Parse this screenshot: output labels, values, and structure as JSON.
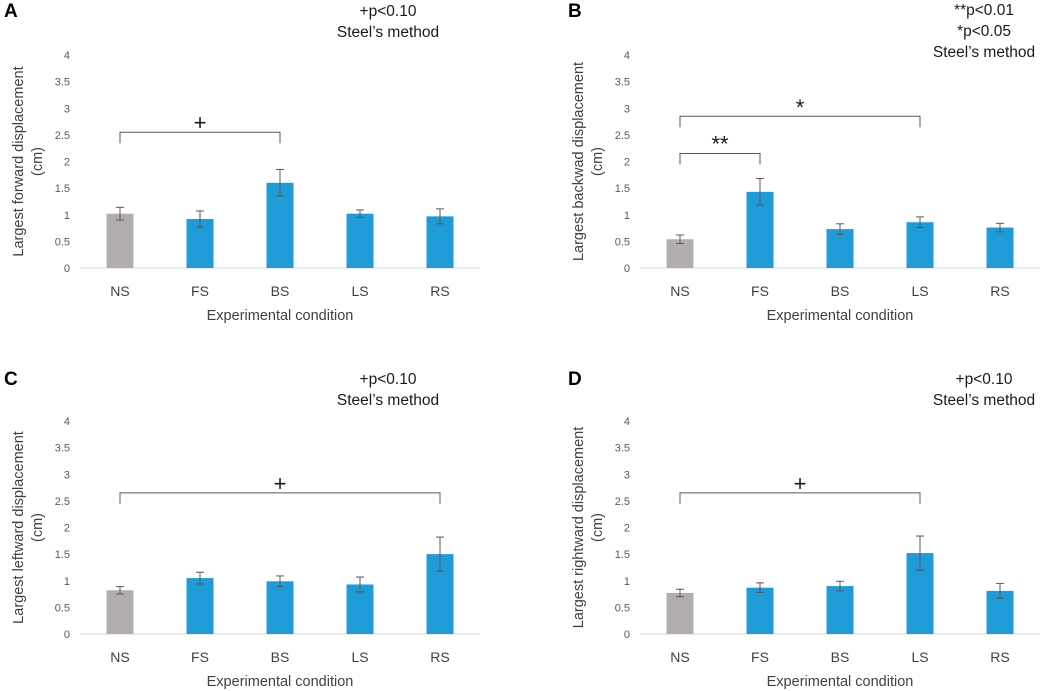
{
  "chart_data": [
    {
      "type": "bar",
      "panel": "A",
      "categories": [
        "NS",
        "FS",
        "BS",
        "LS",
        "RS"
      ],
      "values": [
        1.02,
        0.92,
        1.6,
        1.02,
        0.97
      ],
      "errors": [
        0.12,
        0.15,
        0.25,
        0.07,
        0.14
      ],
      "colors": [
        "#b2aeae",
        "#1f9bd7",
        "#1f9bd7",
        "#1f9bd7",
        "#1f9bd7"
      ],
      "xlabel": "Experimental condition",
      "ylabel": [
        "Largest forward displacement",
        "(cm)"
      ],
      "ylim": [
        0,
        4
      ],
      "yticks": [
        "0",
        "0.5",
        "1",
        "1.5",
        "2",
        "2.5",
        "3",
        "3.5",
        "4"
      ],
      "annotations": [
        "+p<0.10",
        "Steel’s method"
      ],
      "brackets": [
        {
          "from": 0,
          "to": 2,
          "y": 2.55,
          "mark": "+"
        }
      ]
    },
    {
      "type": "bar",
      "panel": "B",
      "categories": [
        "NS",
        "FS",
        "BS",
        "LS",
        "RS"
      ],
      "values": [
        0.54,
        1.43,
        0.73,
        0.86,
        0.76
      ],
      "errors": [
        0.08,
        0.25,
        0.1,
        0.1,
        0.08
      ],
      "colors": [
        "#b2aeae",
        "#1f9bd7",
        "#1f9bd7",
        "#1f9bd7",
        "#1f9bd7"
      ],
      "xlabel": "Experimental condition",
      "ylabel": [
        "Largest backwad displacement",
        "(cm)"
      ],
      "ylim": [
        0,
        4
      ],
      "yticks": [
        "0",
        "0.5",
        "1",
        "1.5",
        "2",
        "2.5",
        "3",
        "3.5",
        "4"
      ],
      "annotations": [
        "**p<0.01",
        "*p<0.05",
        "Steel’s method"
      ],
      "brackets": [
        {
          "from": 0,
          "to": 3,
          "y": 2.85,
          "mark": "*"
        },
        {
          "from": 0,
          "to": 1,
          "y": 2.15,
          "mark": "**"
        }
      ]
    },
    {
      "type": "bar",
      "panel": "C",
      "categories": [
        "NS",
        "FS",
        "BS",
        "LS",
        "RS"
      ],
      "values": [
        0.82,
        1.05,
        0.99,
        0.93,
        1.5
      ],
      "errors": [
        0.07,
        0.11,
        0.1,
        0.14,
        0.32
      ],
      "colors": [
        "#b2aeae",
        "#1f9bd7",
        "#1f9bd7",
        "#1f9bd7",
        "#1f9bd7"
      ],
      "xlabel": "Experimental condition",
      "ylabel": [
        "Largest leftward displacement",
        "(cm)"
      ],
      "ylim": [
        0,
        4
      ],
      "yticks": [
        "0",
        "0.5",
        "1",
        "1.5",
        "2",
        "2.5",
        "3",
        "3.5",
        "4"
      ],
      "annotations": [
        "+p<0.10",
        "Steel’s method"
      ],
      "brackets": [
        {
          "from": 0,
          "to": 4,
          "y": 2.65,
          "mark": "+"
        }
      ]
    },
    {
      "type": "bar",
      "panel": "D",
      "categories": [
        "NS",
        "FS",
        "BS",
        "LS",
        "RS"
      ],
      "values": [
        0.77,
        0.87,
        0.9,
        1.52,
        0.81
      ],
      "errors": [
        0.07,
        0.09,
        0.09,
        0.32,
        0.14
      ],
      "colors": [
        "#b2aeae",
        "#1f9bd7",
        "#1f9bd7",
        "#1f9bd7",
        "#1f9bd7"
      ],
      "xlabel": "Experimental condition",
      "ylabel": [
        "Largest rightward displacement",
        "(cm)"
      ],
      "ylim": [
        0,
        4
      ],
      "yticks": [
        "0",
        "0.5",
        "1",
        "1.5",
        "2",
        "2.5",
        "3",
        "3.5",
        "4"
      ],
      "annotations": [
        "+p<0.10",
        "Steel’s method"
      ],
      "brackets": [
        {
          "from": 0,
          "to": 3,
          "y": 2.65,
          "mark": "+"
        }
      ]
    }
  ]
}
